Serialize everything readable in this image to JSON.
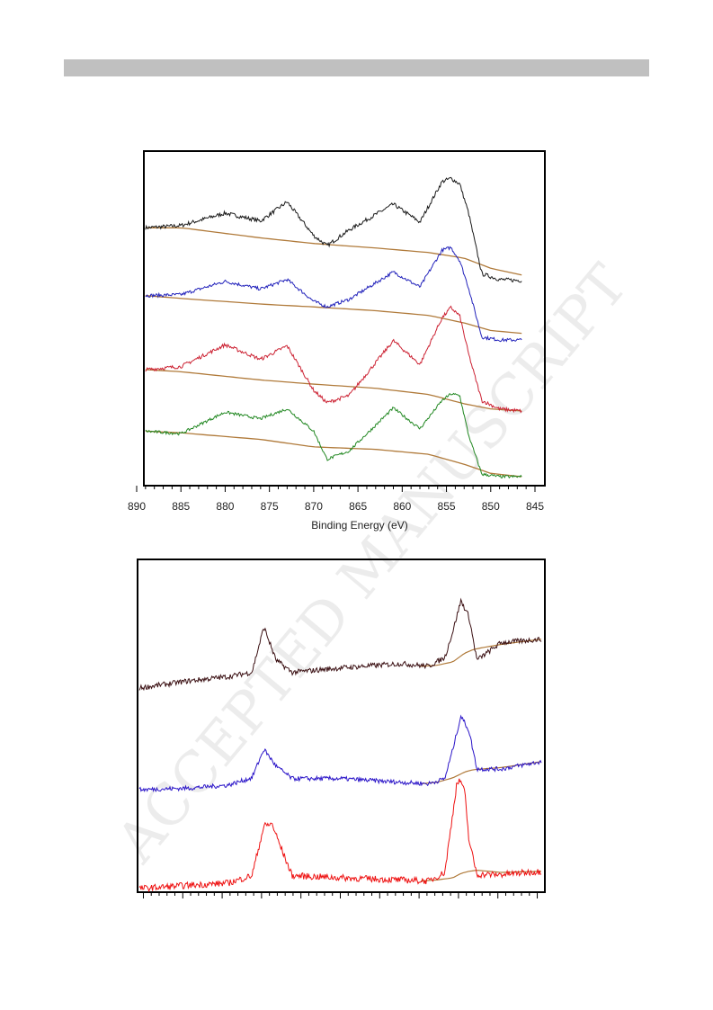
{
  "page": {
    "header_bar_color": "#c0c0c0"
  },
  "watermark": {
    "text": "ACCEPTED MANUSCRIPT",
    "color": "#dcdcdc"
  },
  "chart_data": [
    {
      "type": "line",
      "title": "",
      "xlabel": "Binding Energy (eV)",
      "ylabel": "",
      "xlim": [
        890,
        845
      ],
      "x_reversed": true,
      "x_ticks": [
        890,
        885,
        880,
        875,
        870,
        865,
        860,
        855,
        850,
        845
      ],
      "grid": false,
      "legend": "none",
      "background_color": "#b07a3a",
      "series": [
        {
          "color": "#1a1a1a",
          "x": [
            889,
            885,
            880,
            876,
            873,
            870,
            868.5,
            866,
            861,
            858,
            855.5,
            854.5,
            853.5,
            852.5,
            851,
            849,
            846.5
          ],
          "y": [
            0.47,
            0.49,
            0.6,
            0.53,
            0.7,
            0.4,
            0.31,
            0.45,
            0.68,
            0.52,
            0.88,
            0.91,
            0.86,
            0.6,
            0.06,
            0.01,
            0.0
          ],
          "background": {
            "x": [
              889,
              885,
              876,
              870,
              863,
              857,
              853,
              850,
              846.5
            ],
            "y": [
              0.47,
              0.47,
              0.38,
              0.33,
              0.29,
              0.25,
              0.2,
              0.11,
              0.05
            ]
          }
        },
        {
          "color": "#2222bb",
          "x": [
            889,
            885,
            880,
            876,
            873,
            870,
            868.5,
            866,
            861,
            858,
            855.5,
            854.5,
            853.5,
            852.5,
            851,
            849,
            846.5
          ],
          "y": [
            0.47,
            0.48,
            0.62,
            0.54,
            0.64,
            0.41,
            0.35,
            0.43,
            0.72,
            0.56,
            0.95,
            0.98,
            0.84,
            0.55,
            0.03,
            0.0,
            0.0
          ],
          "background": {
            "x": [
              889,
              885,
              876,
              870,
              863,
              857,
              853,
              850,
              846.5
            ],
            "y": [
              0.47,
              0.44,
              0.38,
              0.35,
              0.31,
              0.26,
              0.18,
              0.1,
              0.07
            ]
          }
        },
        {
          "color": "#cc2233",
          "x": [
            889,
            885,
            880,
            876,
            873,
            870,
            868.5,
            866,
            861,
            858,
            855.5,
            854.5,
            853.5,
            852.5,
            851,
            849,
            846.5
          ],
          "y": [
            0.4,
            0.43,
            0.64,
            0.5,
            0.63,
            0.2,
            0.08,
            0.15,
            0.68,
            0.45,
            0.9,
            1.0,
            0.92,
            0.55,
            0.1,
            0.02,
            0.0
          ],
          "background": {
            "x": [
              889,
              885,
              876,
              870,
              863,
              857,
              853,
              850,
              846.5
            ],
            "y": [
              0.4,
              0.38,
              0.3,
              0.26,
              0.22,
              0.16,
              0.07,
              0.02,
              0.0
            ]
          }
        },
        {
          "color": "#228822",
          "x": [
            889,
            885,
            880,
            876,
            873,
            870,
            868.5,
            866,
            861,
            858,
            855.5,
            854.5,
            853.5,
            852.5,
            851,
            849,
            846.5
          ],
          "y": [
            0.55,
            0.52,
            0.78,
            0.7,
            0.82,
            0.55,
            0.21,
            0.31,
            0.83,
            0.58,
            0.92,
            1.0,
            0.98,
            0.5,
            0.03,
            0.0,
            0.0
          ],
          "background": {
            "x": [
              889,
              885,
              876,
              870,
              863,
              857,
              853,
              850,
              846.5
            ],
            "y": [
              0.55,
              0.53,
              0.45,
              0.36,
              0.33,
              0.27,
              0.15,
              0.04,
              0.0
            ]
          }
        }
      ]
    },
    {
      "type": "line",
      "title": "",
      "xlabel": "",
      "ylabel": "",
      "xlim": [
        0,
        100
      ],
      "tick_labels_shown": false,
      "grid": false,
      "legend": "none",
      "background_color": "#b07a3a",
      "series": [
        {
          "color": "#3a0f12",
          "x": [
            0,
            12,
            22,
            28,
            31,
            34,
            38,
            50,
            65,
            72,
            76,
            78,
            80,
            82,
            84,
            90,
            100
          ],
          "y": [
            0.0,
            0.08,
            0.13,
            0.18,
            0.7,
            0.32,
            0.18,
            0.23,
            0.28,
            0.25,
            0.35,
            0.65,
            1.0,
            0.82,
            0.32,
            0.52,
            0.56
          ],
          "background": {
            "x": [
              70,
              74,
              78,
              81,
              83,
              85,
              90,
              100
            ],
            "y": [
              0.25,
              0.26,
              0.3,
              0.4,
              0.44,
              0.46,
              0.5,
              0.56
            ]
          }
        },
        {
          "color": "#2a14c8",
          "x": [
            0,
            12,
            22,
            28,
            31,
            34,
            38,
            50,
            65,
            72,
            76,
            78,
            80,
            82,
            84,
            90,
            100
          ],
          "y": [
            0.0,
            0.02,
            0.06,
            0.16,
            0.55,
            0.32,
            0.15,
            0.15,
            0.1,
            0.08,
            0.15,
            0.55,
            1.0,
            0.8,
            0.28,
            0.28,
            0.38
          ],
          "background": {
            "x": [
              70,
              74,
              78,
              81,
              83,
              85,
              90,
              100
            ],
            "y": [
              0.08,
              0.1,
              0.16,
              0.24,
              0.27,
              0.28,
              0.3,
              0.38
            ]
          }
        },
        {
          "color": "#ee1111",
          "x": [
            0,
            12,
            22,
            28,
            31,
            33,
            35,
            38,
            50,
            65,
            72,
            76,
            78,
            79,
            80,
            81,
            82,
            84,
            90,
            100
          ],
          "y": [
            0.0,
            0.03,
            0.05,
            0.12,
            0.58,
            0.6,
            0.4,
            0.12,
            0.1,
            0.08,
            0.07,
            0.15,
            0.7,
            0.98,
            1.0,
            0.88,
            0.45,
            0.13,
            0.13,
            0.16
          ],
          "background": {
            "x": [
              70,
              74,
              78,
              80,
              82,
              84,
              90,
              100
            ],
            "y": [
              0.07,
              0.08,
              0.1,
              0.14,
              0.16,
              0.17,
              0.15,
              0.16
            ]
          }
        }
      ]
    }
  ]
}
